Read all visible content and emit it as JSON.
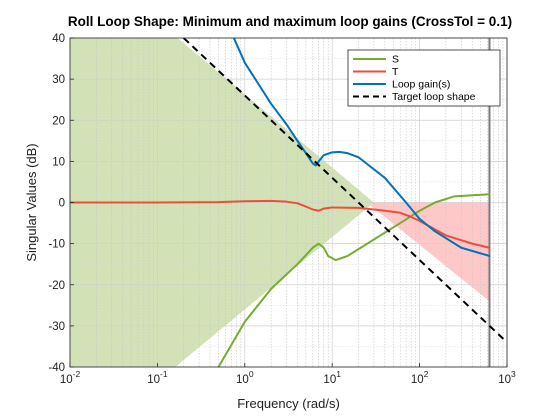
{
  "chart_data": {
    "type": "line",
    "title": "Roll Loop Shape: Minimum and maximum loop gains (CrossTol = 0.1)",
    "xlabel": "Frequency (rad/s)",
    "ylabel": "Singular Values (dB)",
    "xscale": "log",
    "xlim": [
      0.01,
      1000
    ],
    "ylim": [
      -40,
      40
    ],
    "x_ticks": [
      {
        "base": "10",
        "exp": "-2",
        "value": 0.01
      },
      {
        "base": "10",
        "exp": "-1",
        "value": 0.1
      },
      {
        "base": "10",
        "exp": "0",
        "value": 1
      },
      {
        "base": "10",
        "exp": "1",
        "value": 10
      },
      {
        "base": "10",
        "exp": "2",
        "value": 100
      },
      {
        "base": "10",
        "exp": "3",
        "value": 1000
      }
    ],
    "y_ticks": [
      "-40",
      "-30",
      "-20",
      "-10",
      "0",
      "10",
      "20",
      "30",
      "40"
    ],
    "grid": true,
    "legend_position": "top-right",
    "vertical_line_x": 630,
    "regions": [
      {
        "name": "min-gain-region",
        "color": "#d2e2b6",
        "points": [
          [
            0.01,
            40
          ],
          [
            0.01,
            -40
          ],
          [
            0.16,
            -40
          ],
          [
            30,
            0
          ],
          [
            0.17,
            40
          ]
        ]
      },
      {
        "name": "max-gain-region",
        "color": "#ffc8c8",
        "points": [
          [
            25,
            0
          ],
          [
            630,
            0
          ],
          [
            630,
            -24
          ]
        ]
      }
    ],
    "series": [
      {
        "name": "S",
        "color": "#77ac30",
        "points": [
          [
            0.5,
            -40
          ],
          [
            1,
            -29
          ],
          [
            2,
            -21
          ],
          [
            4,
            -15
          ],
          [
            6,
            -11
          ],
          [
            7,
            -10
          ],
          [
            8,
            -11
          ],
          [
            9,
            -13
          ],
          [
            11,
            -14
          ],
          [
            15,
            -13
          ],
          [
            30,
            -9
          ],
          [
            60,
            -5
          ],
          [
            100,
            -2
          ],
          [
            150,
            0
          ],
          [
            250,
            1.5
          ],
          [
            630,
            2
          ]
        ]
      },
      {
        "name": "T",
        "color": "#e8503a",
        "points": [
          [
            0.01,
            0
          ],
          [
            0.1,
            0
          ],
          [
            0.5,
            0.1
          ],
          [
            1,
            0.3
          ],
          [
            2,
            0.4
          ],
          [
            3,
            0.2
          ],
          [
            4,
            -0.2
          ],
          [
            5,
            -1
          ],
          [
            6,
            -1.7
          ],
          [
            7,
            -2
          ],
          [
            8,
            -1.5
          ],
          [
            10,
            -1.2
          ],
          [
            20,
            -1.3
          ],
          [
            40,
            -2
          ],
          [
            60,
            -2.5
          ],
          [
            80,
            -3.5
          ],
          [
            100,
            -4.5
          ],
          [
            200,
            -8
          ],
          [
            400,
            -10
          ],
          [
            630,
            -11
          ]
        ]
      },
      {
        "name": "Loop gain(s)",
        "color": "#0072bd",
        "points": [
          [
            0.75,
            40
          ],
          [
            1,
            34
          ],
          [
            2,
            24
          ],
          [
            3,
            19
          ],
          [
            4,
            15
          ],
          [
            5,
            12
          ],
          [
            6,
            9.5
          ],
          [
            6.5,
            9
          ],
          [
            7,
            10
          ],
          [
            8,
            11.5
          ],
          [
            10,
            12.2
          ],
          [
            12,
            12.3
          ],
          [
            15,
            12
          ],
          [
            20,
            11
          ],
          [
            40,
            6
          ],
          [
            70,
            0
          ],
          [
            100,
            -4
          ],
          [
            150,
            -7
          ],
          [
            300,
            -11
          ],
          [
            630,
            -13
          ]
        ]
      },
      {
        "name": "Target loop shape",
        "color": "#000000",
        "dash": true,
        "points": [
          [
            0.2,
            40
          ],
          [
            1000,
            -34
          ]
        ]
      }
    ]
  }
}
